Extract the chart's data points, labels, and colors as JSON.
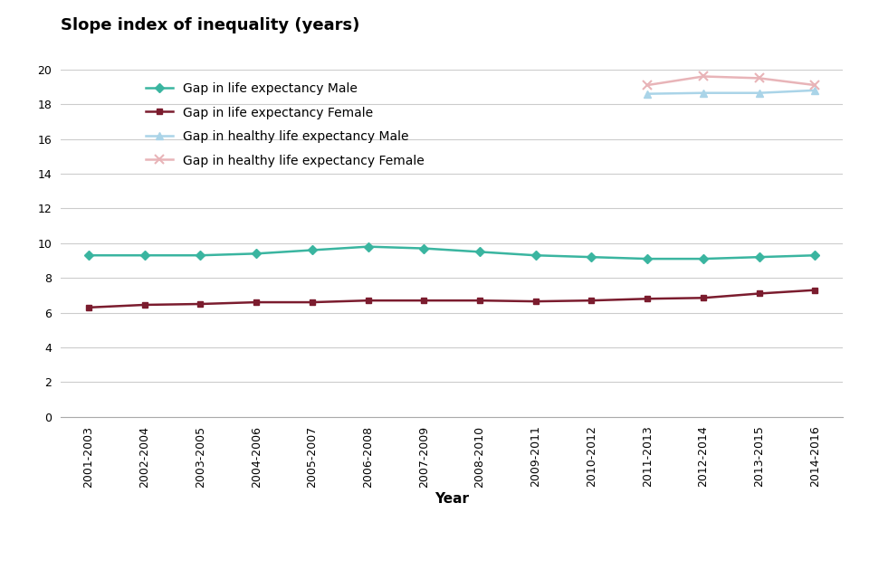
{
  "years": [
    "2001-2003",
    "2002-2004",
    "2003-2005",
    "2004-2006",
    "2005-2007",
    "2006-2008",
    "2007-2009",
    "2008-2010",
    "2009-2011",
    "2010-2012",
    "2011-2013",
    "2012-2014",
    "2013-2015",
    "2014-2016"
  ],
  "life_expectancy_male": [
    9.3,
    9.3,
    9.3,
    9.4,
    9.6,
    9.8,
    9.7,
    9.5,
    9.3,
    9.2,
    9.1,
    9.1,
    9.2,
    9.3
  ],
  "life_expectancy_female": [
    6.3,
    6.45,
    6.5,
    6.6,
    6.6,
    6.7,
    6.7,
    6.7,
    6.65,
    6.7,
    6.8,
    6.85,
    7.1,
    7.3
  ],
  "healthy_life_expectancy_male": [
    null,
    null,
    null,
    null,
    null,
    null,
    null,
    null,
    null,
    null,
    18.6,
    18.65,
    18.65,
    18.8
  ],
  "healthy_life_expectancy_female": [
    null,
    null,
    null,
    null,
    null,
    null,
    null,
    null,
    null,
    null,
    19.1,
    19.6,
    19.5,
    19.1
  ],
  "color_life_male": "#3ab5a0",
  "color_life_female": "#7b1c2e",
  "color_hle_male": "#aad4e8",
  "color_hle_female": "#e8b4b8",
  "ylabel": "Slope index of inequality (years)",
  "xlabel": "Year",
  "ylim": [
    0,
    20
  ],
  "yticks": [
    0,
    2,
    4,
    6,
    8,
    10,
    12,
    14,
    16,
    18,
    20
  ],
  "legend_labels": [
    "Gap in life expectancy Male",
    "Gap in life expectancy Female",
    "Gap in healthy life expectancy Male",
    "Gap in healthy life expectancy Female"
  ],
  "bg_color": "#ffffff",
  "grid_color": "#cccccc",
  "title_fontsize": 13,
  "axis_label_fontsize": 11,
  "legend_fontsize": 10,
  "tick_fontsize": 9
}
